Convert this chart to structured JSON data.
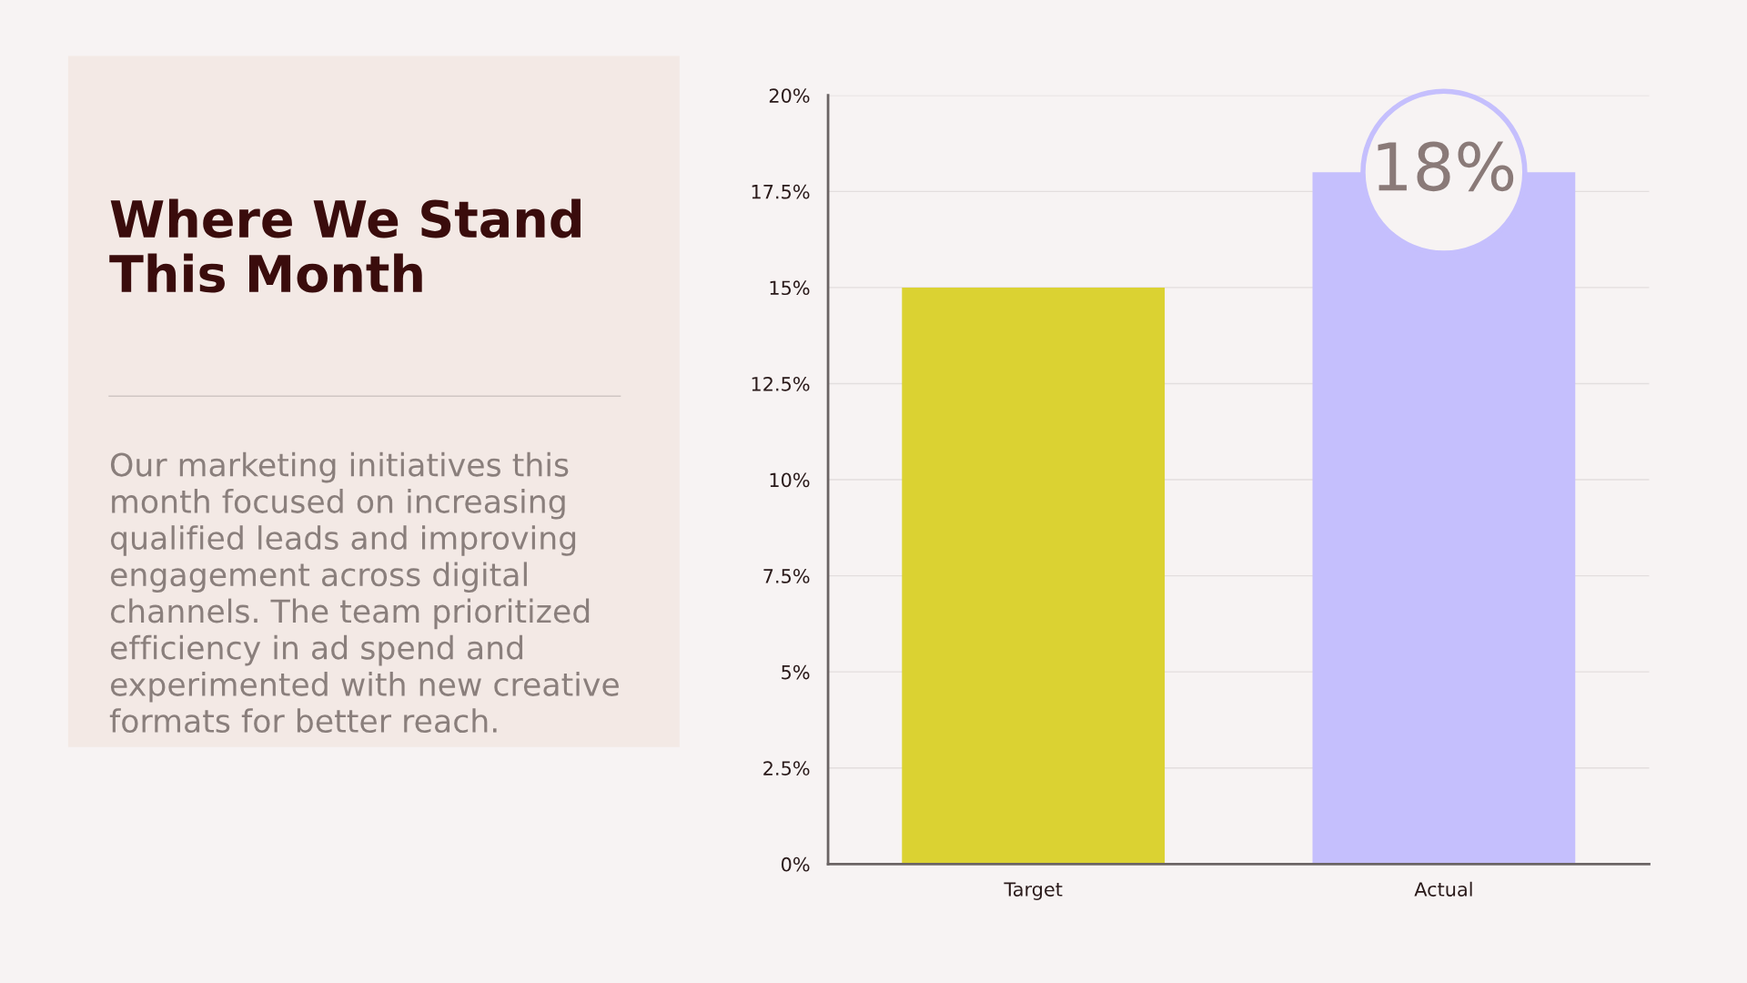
{
  "chart_data": {
    "type": "bar",
    "title": "Where We Stand\nThis Month",
    "annotations": [
      "Our marketing initiatives this\nmonth focused on increasing\nqualified leads and improving\nengagement across digital\nchannels. The team prioritized\nefficiency in ad spend and\nexperimented with new creative\nformats for better reach."
    ],
    "categories": [
      "Target",
      "Actual"
    ],
    "values": [
      15,
      18
    ],
    "colors": [
      "#dbd232",
      "#c5bffd"
    ],
    "value_labels": [
      null,
      "18%"
    ],
    "ylim": [
      0,
      20
    ],
    "yticks": [
      {
        "value": 0,
        "label": "0%"
      },
      {
        "value": 2.5,
        "label": "2.5%"
      },
      {
        "value": 5,
        "label": "5%"
      },
      {
        "value": 7.5,
        "label": "7.5%"
      },
      {
        "value": 10,
        "label": "10%"
      },
      {
        "value": 12.5,
        "label": "12.5%"
      },
      {
        "value": 15,
        "label": "15%"
      },
      {
        "value": 17.5,
        "label": "17.5%"
      },
      {
        "value": 20,
        "label": "20%"
      }
    ],
    "grid": "y",
    "legend": false
  }
}
